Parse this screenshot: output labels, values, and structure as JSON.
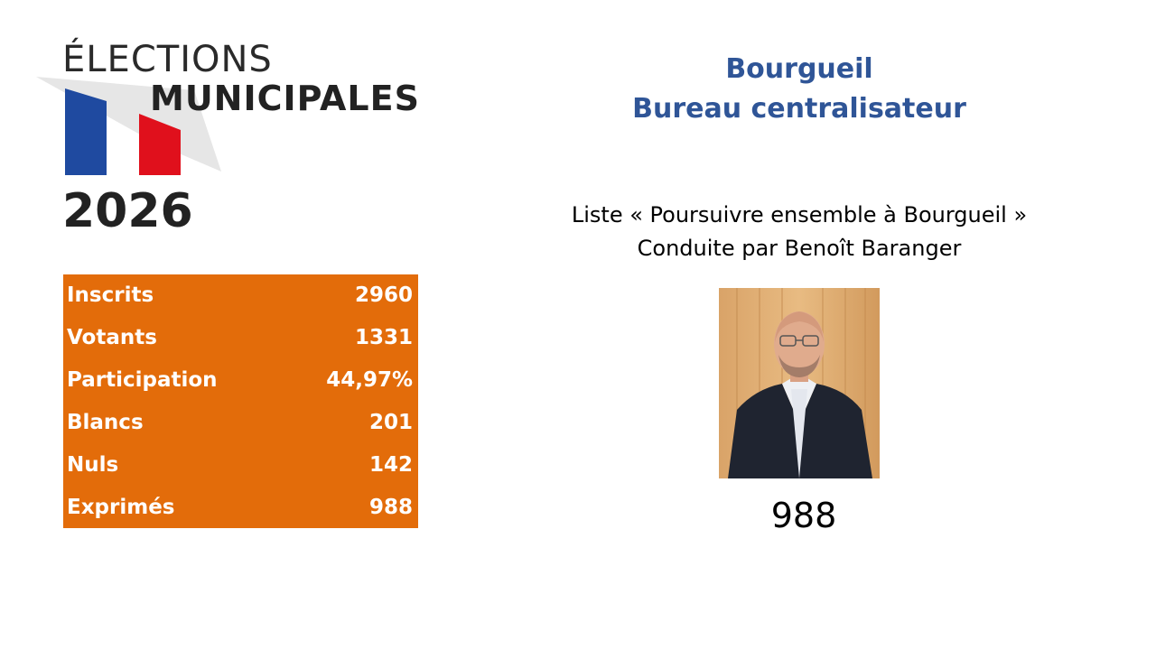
{
  "logo": {
    "line1": "ÉLECTIONS",
    "line2": "MUNICIPALES",
    "year": "2026",
    "flag_colors": [
      "#1f4aa0",
      "#ffffff",
      "#e0101c"
    ]
  },
  "stats": [
    {
      "label": "Inscrits",
      "value": "2960"
    },
    {
      "label": "Votants",
      "value": "1331"
    },
    {
      "label": "Participation",
      "value": "44,97%"
    },
    {
      "label": "Blancs",
      "value": "201"
    },
    {
      "label": "Nuls",
      "value": "142"
    },
    {
      "label": "Exprimés",
      "value": "988"
    }
  ],
  "header": {
    "commune": "Bourgueil",
    "bureau": "Bureau centralisateur"
  },
  "candidate": {
    "list_line": "Liste « Poursuivre ensemble à Bourgueil »",
    "leader_line": "Conduite par Benoît Baranger",
    "votes": "988"
  },
  "colors": {
    "accent_orange": "#e36c0a",
    "title_blue": "#2f5597"
  }
}
